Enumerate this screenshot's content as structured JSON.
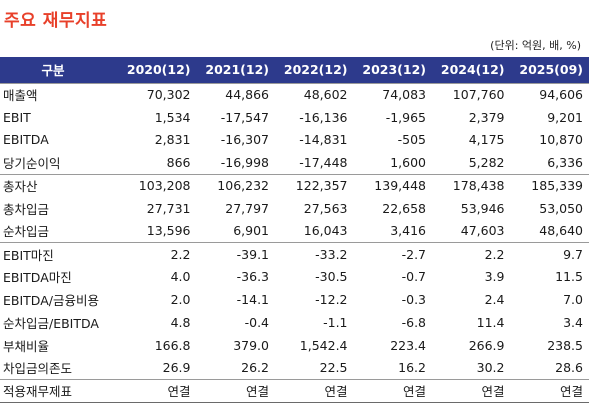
{
  "title": "주요 재무지표",
  "unit_note": "(단위: 억원, 배, %)",
  "header": {
    "label": "구분",
    "columns": [
      "2020(12)",
      "2021(12)",
      "2022(12)",
      "2023(12)",
      "2024(12)",
      "2025(09)"
    ]
  },
  "rows": [
    {
      "label": "매출액",
      "values": [
        "70,302",
        "44,866",
        "48,602",
        "74,083",
        "107,760",
        "94,606"
      ]
    },
    {
      "label": "EBIT",
      "values": [
        "1,534",
        "-17,547",
        "-16,136",
        "-1,965",
        "2,379",
        "9,201"
      ]
    },
    {
      "label": "EBITDA",
      "values": [
        "2,831",
        "-16,307",
        "-14,831",
        "-505",
        "4,175",
        "10,870"
      ]
    },
    {
      "label": "당기순이익",
      "values": [
        "866",
        "-16,998",
        "-17,448",
        "1,600",
        "5,282",
        "6,336"
      ]
    },
    {
      "label": "총자산",
      "values": [
        "103,208",
        "106,232",
        "122,357",
        "139,448",
        "178,438",
        "185,339"
      ]
    },
    {
      "label": "총차입금",
      "values": [
        "27,731",
        "27,797",
        "27,563",
        "22,658",
        "53,946",
        "53,050"
      ]
    },
    {
      "label": "순차입금",
      "values": [
        "13,596",
        "6,901",
        "16,043",
        "3,416",
        "47,603",
        "48,640"
      ]
    },
    {
      "label": "EBIT마진",
      "values": [
        "2.2",
        "-39.1",
        "-33.2",
        "-2.7",
        "2.2",
        "9.7"
      ]
    },
    {
      "label": "EBITDA마진",
      "values": [
        "4.0",
        "-36.3",
        "-30.5",
        "-0.7",
        "3.9",
        "11.5"
      ]
    },
    {
      "label": "EBITDA/금융비용",
      "values": [
        "2.0",
        "-14.1",
        "-12.2",
        "-0.3",
        "2.4",
        "7.0"
      ]
    },
    {
      "label": "순차입금/EBITDA",
      "values": [
        "4.8",
        "-0.4",
        "-1.1",
        "-6.8",
        "11.4",
        "3.4"
      ]
    },
    {
      "label": "부채비율",
      "values": [
        "166.8",
        "379.0",
        "1,542.4",
        "223.4",
        "266.9",
        "238.5"
      ]
    },
    {
      "label": "차입금의존도",
      "values": [
        "26.9",
        "26.2",
        "22.5",
        "16.2",
        "30.2",
        "28.6"
      ]
    },
    {
      "label": "적용재무제표",
      "values": [
        "연결",
        "연결",
        "연결",
        "연결",
        "연결",
        "연결"
      ]
    }
  ]
}
